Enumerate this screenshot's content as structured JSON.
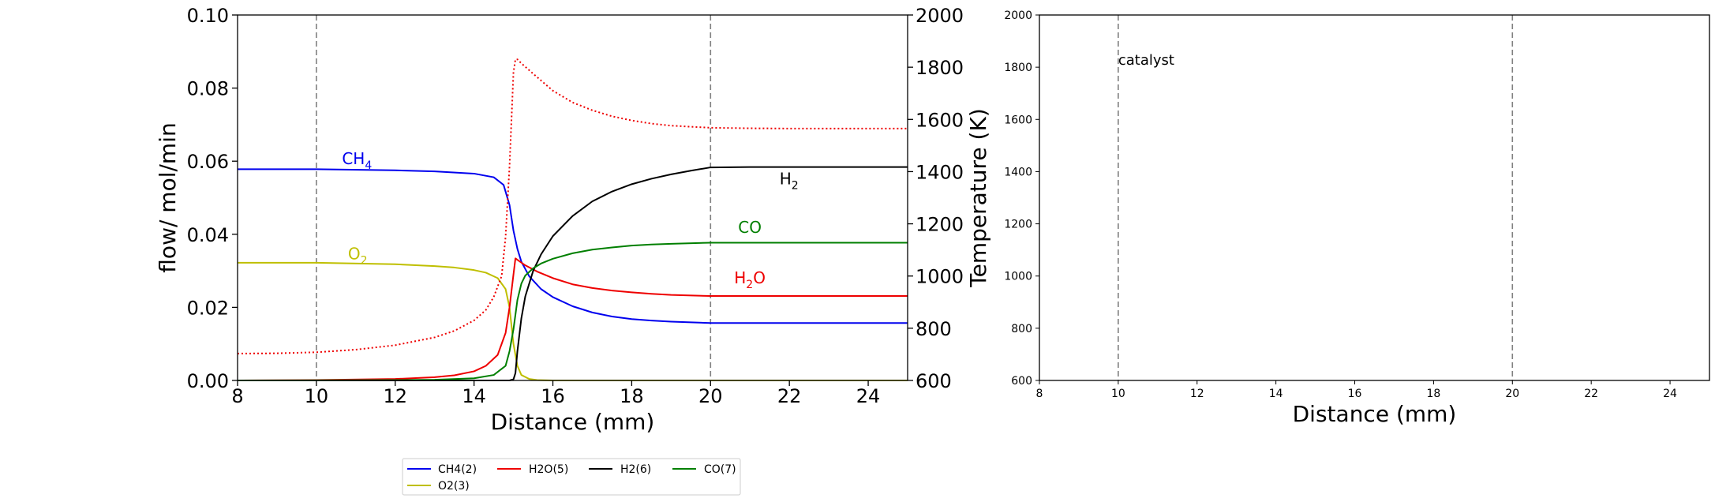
{
  "figure": {
    "background": "#ffffff"
  },
  "chart_data": [
    {
      "type": "line",
      "title": "",
      "xlabel": "Distance (mm)",
      "ylabel": "flow/ mol/min",
      "y2label": "Temperature (K)",
      "xlim": [
        8,
        25
      ],
      "ylim": [
        0,
        0.1
      ],
      "y2lim": [
        600,
        2000
      ],
      "xticks": [
        "8",
        "10",
        "12",
        "14",
        "16",
        "18",
        "20",
        "22",
        "24"
      ],
      "yticks": [
        "0.00",
        "0.02",
        "0.04",
        "0.06",
        "0.08",
        "0.10"
      ],
      "y2ticks": [
        "600",
        "800",
        "1000",
        "1200",
        "1400",
        "1600",
        "1800",
        "2000"
      ],
      "vlines": [
        10,
        20
      ],
      "grid": false,
      "legend": {
        "placement": "below chart",
        "entries": [
          {
            "label": "CH4(2)",
            "color": "#0000ee"
          },
          {
            "label": "H2O(5)",
            "color": "#ee0000"
          },
          {
            "label": "H2(6)",
            "color": "#000000"
          },
          {
            "label": "CO(7)",
            "color": "#007f00"
          },
          {
            "label": "O2(3)",
            "color": "#bfbf00"
          }
        ]
      },
      "annotations": [
        {
          "base": "CH",
          "sub": "4",
          "tail": "",
          "color": "#0000ee",
          "x": 10.65,
          "y": 0.0592
        },
        {
          "base": "O",
          "sub": "2",
          "tail": "",
          "color": "#bfbf00",
          "x": 10.8,
          "y": 0.0332
        },
        {
          "base": "H",
          "sub": "2",
          "tail": "",
          "color": "#000000",
          "x": 21.75,
          "y": 0.0537
        },
        {
          "base": "CO",
          "sub": "",
          "tail": "",
          "color": "#007f00",
          "x": 20.7,
          "y": 0.0404
        },
        {
          "base": "H",
          "sub": "2",
          "tail": "O",
          "color": "#ee0000",
          "x": 20.6,
          "y": 0.0266
        }
      ],
      "series": [
        {
          "name": "CH4(2)",
          "color": "#0000ee",
          "axis": "left",
          "dash": "",
          "x": [
            8,
            10,
            12,
            13,
            14,
            14.5,
            14.75,
            14.9,
            15.0,
            15.1,
            15.2,
            15.4,
            15.7,
            16,
            16.5,
            17,
            17.5,
            18,
            18.5,
            19,
            20,
            21,
            22,
            23,
            24,
            25
          ],
          "y": [
            0.0578,
            0.0578,
            0.0575,
            0.0572,
            0.0566,
            0.0556,
            0.0535,
            0.048,
            0.041,
            0.036,
            0.0325,
            0.0285,
            0.025,
            0.0228,
            0.0203,
            0.0186,
            0.0175,
            0.0168,
            0.0164,
            0.0161,
            0.0157,
            0.0157,
            0.0157,
            0.0157,
            0.0157,
            0.0157
          ]
        },
        {
          "name": "O2(3)",
          "color": "#bfbf00",
          "axis": "left",
          "dash": "",
          "x": [
            8,
            10,
            12,
            13,
            13.5,
            14,
            14.3,
            14.6,
            14.8,
            14.9,
            15.0,
            15.1,
            15.2,
            15.4,
            15.6,
            16,
            18,
            20,
            25
          ],
          "y": [
            0.0322,
            0.0322,
            0.0318,
            0.0313,
            0.0309,
            0.0302,
            0.0295,
            0.028,
            0.025,
            0.02,
            0.01,
            0.004,
            0.0015,
            0.0004,
            0.0001,
            0,
            0,
            0,
            0
          ]
        },
        {
          "name": "H2O(5)",
          "color": "#ee0000",
          "axis": "left",
          "dash": "",
          "x": [
            8,
            10,
            12,
            13,
            13.5,
            14,
            14.3,
            14.6,
            14.8,
            14.9,
            15.0,
            15.05,
            15.1,
            15.3,
            15.6,
            16,
            16.5,
            17,
            17.5,
            18,
            18.5,
            19,
            20,
            21,
            22,
            23,
            24,
            25
          ],
          "y": [
            0,
            0.0001,
            0.0004,
            0.0009,
            0.0014,
            0.0025,
            0.004,
            0.007,
            0.013,
            0.02,
            0.029,
            0.0334,
            0.033,
            0.0315,
            0.0298,
            0.028,
            0.0263,
            0.0253,
            0.0246,
            0.0241,
            0.0237,
            0.0234,
            0.0231,
            0.0231,
            0.0231,
            0.0231,
            0.0231,
            0.0231
          ]
        },
        {
          "name": "H2(6)",
          "color": "#000000",
          "axis": "left",
          "dash": "",
          "x": [
            8,
            12,
            14,
            14.9,
            15.0,
            15.05,
            15.1,
            15.2,
            15.3,
            15.5,
            15.7,
            16,
            16.5,
            17,
            17.5,
            18,
            18.5,
            19,
            19.5,
            20,
            21,
            22,
            23,
            24,
            25
          ],
          "y": [
            0,
            0,
            0,
            0,
            0.0003,
            0.002,
            0.008,
            0.017,
            0.023,
            0.03,
            0.0345,
            0.0395,
            0.045,
            0.049,
            0.0517,
            0.0537,
            0.0552,
            0.0564,
            0.0574,
            0.0583,
            0.0584,
            0.0584,
            0.0584,
            0.0584,
            0.0584
          ]
        },
        {
          "name": "CO(7)",
          "color": "#007f00",
          "axis": "left",
          "dash": "",
          "x": [
            8,
            12,
            13,
            14,
            14.5,
            14.8,
            14.9,
            15.0,
            15.1,
            15.2,
            15.3,
            15.5,
            15.7,
            16,
            16.5,
            17,
            17.5,
            18,
            18.5,
            19,
            20,
            21,
            22,
            23,
            24,
            25
          ],
          "y": [
            0,
            0.0001,
            0.0002,
            0.0006,
            0.0015,
            0.004,
            0.008,
            0.014,
            0.022,
            0.0265,
            0.0287,
            0.0307,
            0.032,
            0.0333,
            0.0348,
            0.0358,
            0.0364,
            0.0369,
            0.0372,
            0.0374,
            0.0377,
            0.0377,
            0.0377,
            0.0377,
            0.0377,
            0.0377
          ]
        },
        {
          "name": "",
          "color": "#ee0000",
          "axis": "right",
          "dash": "2,3",
          "x": [
            8,
            9,
            10,
            11,
            12,
            13,
            13.5,
            14,
            14.3,
            14.5,
            14.7,
            14.8,
            14.9,
            15.0,
            15.05,
            15.1,
            15.2,
            15.5,
            16,
            16.5,
            17,
            17.5,
            18,
            18.5,
            19,
            20,
            21,
            22,
            23,
            24,
            25
          ],
          "y": [
            703,
            704,
            708,
            718,
            735,
            765,
            790,
            830,
            870,
            920,
            1000,
            1150,
            1420,
            1780,
            1830,
            1830,
            1815,
            1775,
            1710,
            1665,
            1635,
            1612,
            1596,
            1584,
            1576,
            1568,
            1566,
            1565,
            1565,
            1565,
            1565
          ]
        }
      ]
    },
    {
      "type": "line",
      "title": "",
      "xlabel": "Distance (mm)",
      "ylabel": "",
      "xlim": [
        8,
        25
      ],
      "ylim": [
        600,
        2000
      ],
      "xticks": [
        "8",
        "10",
        "12",
        "14",
        "16",
        "18",
        "20",
        "22",
        "24"
      ],
      "yticks": [
        "600",
        "800",
        "1000",
        "1200",
        "1400",
        "1600",
        "1800",
        "2000"
      ],
      "vlines": [
        10,
        20
      ],
      "grid": false,
      "annotation": {
        "text": "catalyst",
        "x": 10,
        "y": 1810
      },
      "series": []
    }
  ]
}
